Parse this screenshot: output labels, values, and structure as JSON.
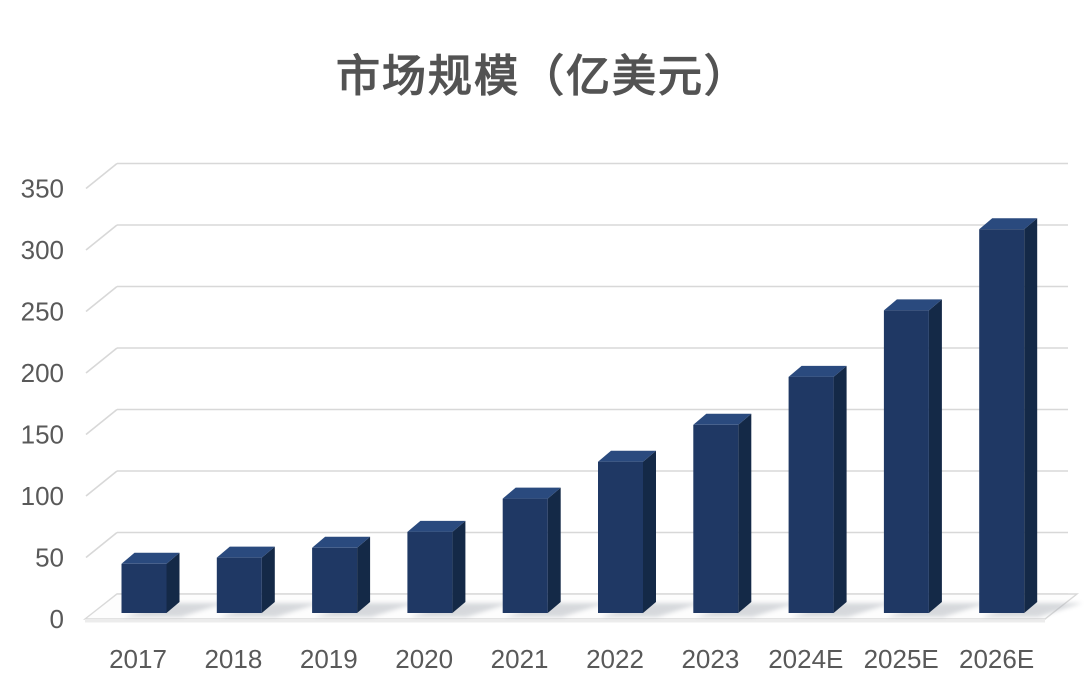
{
  "title": "市场规模（亿美元）",
  "chart_data": {
    "type": "bar",
    "style": "3d-column",
    "title": "市场规模（亿美元）",
    "unit": "亿美元",
    "categories": [
      "2017",
      "2018",
      "2019",
      "2020",
      "2021",
      "2022",
      "2023",
      "2024E",
      "2025E",
      "2026E"
    ],
    "values": [
      40,
      45,
      53,
      66,
      93,
      123,
      153,
      192,
      246,
      312
    ],
    "ylim": [
      0,
      350
    ],
    "yticks": [
      0,
      50,
      100,
      150,
      200,
      250,
      300,
      350
    ],
    "grid": true,
    "legend": false,
    "colors": {
      "bar_front": "#1f3864",
      "bar_top": "#2a4a7e",
      "bar_side": "#142947",
      "gridline": "#d8d8d8",
      "floor_fill": "#fdfdfd",
      "floor_edge": "#d9d9d9",
      "shadow": "#a8adb5",
      "tick_text": "#595959",
      "title_text": "#535353"
    }
  }
}
